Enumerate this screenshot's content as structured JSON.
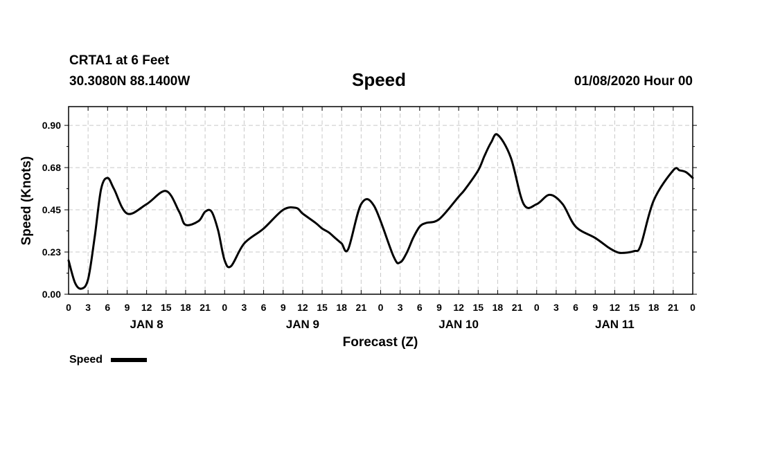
{
  "header": {
    "station": "CRTA1 at 6 Feet",
    "coords": "30.3080N 88.1400W",
    "title": "Speed",
    "run": "01/08/2020 Hour 00"
  },
  "legend": {
    "label": "Speed",
    "color": "#000000"
  },
  "chart_data": {
    "type": "line",
    "title": "Speed",
    "xlabel": "Forecast (Z)",
    "ylabel": "Speed (Knots)",
    "ylim": [
      0,
      1.0
    ],
    "xlim_hours": [
      0,
      96
    ],
    "yticks": [
      "0.00",
      "0.23",
      "0.45",
      "0.68",
      "0.90"
    ],
    "ytick_values": [
      0.0,
      0.225,
      0.45,
      0.675,
      0.9
    ],
    "xtick_labels": [
      "0",
      "3",
      "6",
      "9",
      "12",
      "15",
      "18",
      "21",
      "0",
      "3",
      "6",
      "9",
      "12",
      "15",
      "18",
      "21",
      "0",
      "3",
      "6",
      "9",
      "12",
      "15",
      "18",
      "21",
      "0",
      "3",
      "6",
      "9",
      "12",
      "15",
      "18",
      "21",
      "0"
    ],
    "day_labels": [
      {
        "label": "JAN 8",
        "hour": 12
      },
      {
        "label": "JAN 9",
        "hour": 36
      },
      {
        "label": "JAN 10",
        "hour": 60
      },
      {
        "label": "JAN 11",
        "hour": 84
      }
    ],
    "grid": true,
    "legend_position": "bottom-left",
    "series": [
      {
        "name": "Speed",
        "color": "#000000",
        "x": [
          0,
          1,
          2,
          3,
          4,
          5,
          6,
          7,
          9,
          12,
          15,
          17,
          18,
          20,
          21,
          22,
          23,
          24,
          25,
          27,
          30,
          33,
          35,
          36,
          38,
          39,
          40,
          41,
          42,
          43,
          45,
          47,
          50,
          51,
          52,
          53,
          54,
          55,
          57,
          60,
          61,
          63,
          64,
          65,
          66,
          68,
          70,
          72,
          74,
          76,
          78,
          81,
          83,
          84,
          85,
          87,
          88,
          90,
          93,
          94,
          95,
          96
        ],
        "y": [
          0.18,
          0.06,
          0.03,
          0.08,
          0.3,
          0.56,
          0.62,
          0.56,
          0.43,
          0.48,
          0.55,
          0.44,
          0.37,
          0.39,
          0.44,
          0.44,
          0.34,
          0.18,
          0.15,
          0.27,
          0.35,
          0.45,
          0.46,
          0.43,
          0.38,
          0.35,
          0.33,
          0.3,
          0.27,
          0.24,
          0.48,
          0.47,
          0.2,
          0.17,
          0.22,
          0.3,
          0.36,
          0.38,
          0.4,
          0.52,
          0.56,
          0.66,
          0.74,
          0.81,
          0.85,
          0.73,
          0.48,
          0.48,
          0.53,
          0.48,
          0.36,
          0.3,
          0.25,
          0.23,
          0.22,
          0.23,
          0.26,
          0.5,
          0.66,
          0.66,
          0.65,
          0.62
        ]
      }
    ]
  }
}
